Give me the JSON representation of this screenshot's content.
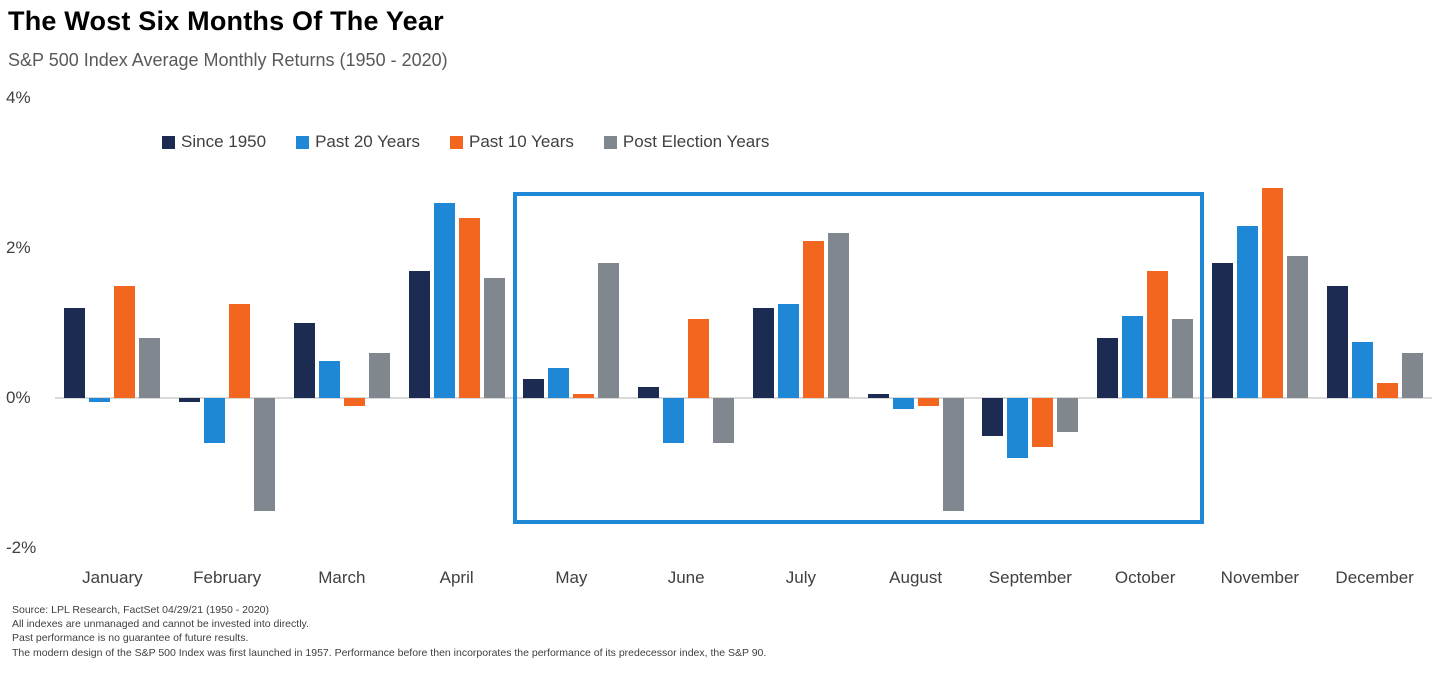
{
  "chart_data": {
    "type": "bar",
    "title": "The Wost Six Months Of The Year",
    "subtitle": "S&P 500 Index Average Monthly Returns (1950 - 2020)",
    "categories": [
      "January",
      "February",
      "March",
      "April",
      "May",
      "June",
      "July",
      "August",
      "September",
      "October",
      "November",
      "December"
    ],
    "series": [
      {
        "name": "Since 1950",
        "color": "#1b2b52",
        "values": [
          1.2,
          -0.05,
          1.0,
          1.7,
          0.25,
          0.15,
          1.2,
          0.05,
          -0.5,
          0.8,
          1.8,
          1.5
        ]
      },
      {
        "name": "Past 20 Years",
        "color": "#1e87d6",
        "values": [
          -0.05,
          -0.6,
          0.5,
          2.6,
          0.4,
          -0.6,
          1.25,
          -0.15,
          -0.8,
          1.1,
          2.3,
          0.75
        ]
      },
      {
        "name": "Past 10 Years",
        "color": "#f3661f",
        "values": [
          1.5,
          1.25,
          -0.1,
          2.4,
          0.05,
          1.05,
          2.1,
          -0.1,
          -0.65,
          1.7,
          2.8,
          0.2
        ]
      },
      {
        "name": "Post Election Years",
        "color": "#80878e",
        "values": [
          0.8,
          -1.5,
          0.6,
          1.6,
          1.8,
          -0.6,
          2.2,
          -1.5,
          -0.45,
          1.05,
          1.9,
          0.6
        ]
      }
    ],
    "ylim": [
      -2,
      4
    ],
    "yticks": [
      {
        "label": "4%",
        "value": 4
      },
      {
        "label": "2%",
        "value": 2
      },
      {
        "label": "0%",
        "value": 0
      },
      {
        "label": "-2%",
        "value": -2
      }
    ],
    "grid": false,
    "legend_position": "top",
    "highlight": {
      "from": "May",
      "to": "October",
      "border_color": "#1e87d6"
    }
  },
  "footnotes": [
    "Source: LPL Research, FactSet 04/29/21  (1950 - 2020)",
    "All indexes are unmanaged  and cannot be invested  into directly.",
    "Past performance is no guarantee  of future results.",
    "The modern  design of the S&P 500 Index was  first launched  in 1957. Performance before then  incorporates  the performance of its  predecessor  index, the S&P 90."
  ]
}
